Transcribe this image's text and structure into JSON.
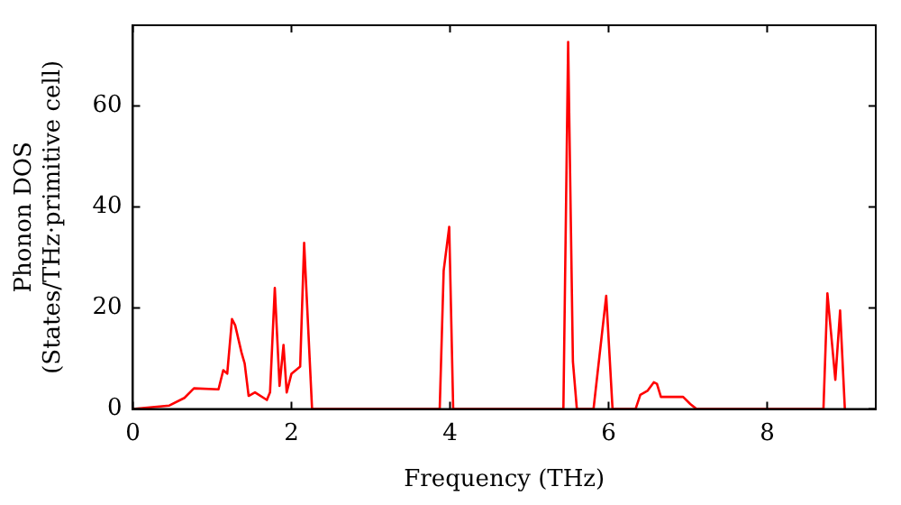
{
  "chart_data": {
    "type": "line",
    "xlabel": "Frequency (THz)",
    "ylabel": "Phonon DOS\n(States/THz·primitive cell)",
    "x": [
      0,
      0.46,
      0.65,
      0.77,
      1.08,
      1.14,
      1.19,
      1.25,
      1.29,
      1.37,
      1.41,
      1.46,
      1.54,
      1.69,
      1.73,
      1.79,
      1.85,
      1.9,
      1.94,
      2.0,
      2.11,
      2.16,
      2.26,
      3.87,
      3.92,
      3.99,
      4.04,
      5.43,
      5.49,
      5.55,
      5.6,
      5.81,
      5.97,
      6.05,
      6.34,
      6.4,
      6.49,
      6.57,
      6.61,
      6.66,
      6.94,
      7.03,
      7.11,
      8.71,
      8.76,
      8.86,
      8.92,
      8.98
    ],
    "series": [
      {
        "color": "#ff0000",
        "values": [
          0,
          0.7,
          2.2,
          4.1,
          3.9,
          7.7,
          7.0,
          17.8,
          16.6,
          11.2,
          9,
          2.6,
          3.3,
          1.8,
          3.3,
          24,
          4.6,
          12.7,
          3.3,
          7.0,
          8.4,
          32.9,
          0,
          0,
          27.4,
          36.1,
          0,
          0,
          72.7,
          9.4,
          0,
          0,
          22.4,
          0,
          0,
          2.8,
          3.6,
          5.3,
          5,
          2.4,
          2.4,
          1,
          0,
          0,
          22.9,
          5.8,
          19.5,
          0
        ]
      }
    ],
    "xlim": [
      0,
      9.37
    ],
    "ylim": [
      0,
      76
    ],
    "xticks": [
      0,
      2,
      4,
      6,
      8
    ],
    "yticks": [
      0,
      20,
      40,
      60
    ],
    "grid": false,
    "legend": false,
    "marker": "none",
    "line_style": "solid"
  }
}
